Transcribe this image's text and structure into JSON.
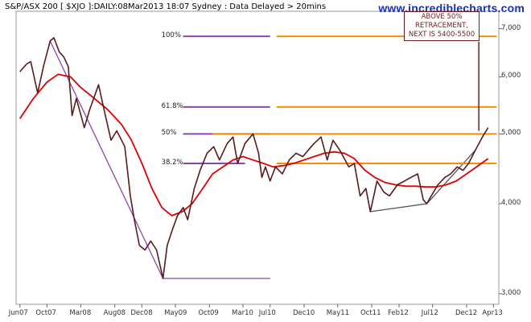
{
  "header": {
    "title": "S&P/ASX 200 [ $XJO ]:DAILY:08Mar2013 18:07 Sydney : Data Delayed > 20mins",
    "watermark": "www.incrediblecharts.com"
  },
  "chart_data": {
    "type": "line",
    "title": "S&P/ASX 200 [ $XJO ]:DAILY:08Mar2013 18:07 Sydney : Data Delayed > 20mins",
    "y_scale": "log",
    "ylim": [
      2900,
      7400
    ],
    "x_tick_labels": [
      "Jun07",
      "Oct07",
      "Mar08",
      "Aug08",
      "Dec08",
      "May09",
      "Oct09",
      "Mar10",
      "Jul10",
      "Dec10",
      "May11",
      "Oct11",
      "Feb12",
      "Jul12",
      "Dec12",
      "Apr13"
    ],
    "y_ticks": [
      3000,
      4000,
      5000,
      6000,
      7000
    ],
    "y_tick_labels": [
      "3,000",
      "4,000",
      "5,000",
      "6,000",
      "7,000"
    ],
    "series": [
      {
        "role": "price",
        "color": "#5a1a1a",
        "points": [
          [
            "2007-06-01",
            6100
          ],
          [
            "2007-07-01",
            6250
          ],
          [
            "2007-07-20",
            6300
          ],
          [
            "2007-08-20",
            5700
          ],
          [
            "2007-09-15",
            6200
          ],
          [
            "2007-10-15",
            6730
          ],
          [
            "2007-11-01",
            6800
          ],
          [
            "2007-11-25",
            6500
          ],
          [
            "2007-12-15",
            6400
          ],
          [
            "2008-01-05",
            6200
          ],
          [
            "2008-01-22",
            5300
          ],
          [
            "2008-02-10",
            5600
          ],
          [
            "2008-03-17",
            5100
          ],
          [
            "2008-04-10",
            5400
          ],
          [
            "2008-05-20",
            5850
          ],
          [
            "2008-06-20",
            5300
          ],
          [
            "2008-07-15",
            4900
          ],
          [
            "2008-08-10",
            5050
          ],
          [
            "2008-09-15",
            4800
          ],
          [
            "2008-10-10",
            4100
          ],
          [
            "2008-10-28",
            3800
          ],
          [
            "2008-11-20",
            3500
          ],
          [
            "2008-12-15",
            3450
          ],
          [
            "2009-01-10",
            3550
          ],
          [
            "2009-02-05",
            3450
          ],
          [
            "2009-03-06",
            3150
          ],
          [
            "2009-03-25",
            3500
          ],
          [
            "2009-04-20",
            3700
          ],
          [
            "2009-05-10",
            3850
          ],
          [
            "2009-06-05",
            3950
          ],
          [
            "2009-06-25",
            3800
          ],
          [
            "2009-07-25",
            4200
          ],
          [
            "2009-08-20",
            4450
          ],
          [
            "2009-09-20",
            4700
          ],
          [
            "2009-10-20",
            4800
          ],
          [
            "2009-11-15",
            4600
          ],
          [
            "2009-12-20",
            4850
          ],
          [
            "2010-01-15",
            4950
          ],
          [
            "2010-02-05",
            4550
          ],
          [
            "2010-03-10",
            4850
          ],
          [
            "2010-04-15",
            5000
          ],
          [
            "2010-05-10",
            4700
          ],
          [
            "2010-05-25",
            4350
          ],
          [
            "2010-06-10",
            4500
          ],
          [
            "2010-07-01",
            4300
          ],
          [
            "2010-07-25",
            4500
          ],
          [
            "2010-08-25",
            4400
          ],
          [
            "2010-09-25",
            4600
          ],
          [
            "2010-10-25",
            4700
          ],
          [
            "2010-11-25",
            4650
          ],
          [
            "2010-12-20",
            4750
          ],
          [
            "2011-01-15",
            4850
          ],
          [
            "2011-02-15",
            4950
          ],
          [
            "2011-03-15",
            4600
          ],
          [
            "2011-04-10",
            4900
          ],
          [
            "2011-05-10",
            4750
          ],
          [
            "2011-06-20",
            4500
          ],
          [
            "2011-07-15",
            4550
          ],
          [
            "2011-08-10",
            4100
          ],
          [
            "2011-09-05",
            4200
          ],
          [
            "2011-09-25",
            3900
          ],
          [
            "2011-10-25",
            4300
          ],
          [
            "2011-11-25",
            4150
          ],
          [
            "2011-12-20",
            4100
          ],
          [
            "2012-01-25",
            4250
          ],
          [
            "2012-02-25",
            4300
          ],
          [
            "2012-03-25",
            4350
          ],
          [
            "2012-04-25",
            4400
          ],
          [
            "2012-05-20",
            4050
          ],
          [
            "2012-06-05",
            4000
          ],
          [
            "2012-06-25",
            4100
          ],
          [
            "2012-07-25",
            4250
          ],
          [
            "2012-08-25",
            4350
          ],
          [
            "2012-09-20",
            4400
          ],
          [
            "2012-10-20",
            4500
          ],
          [
            "2012-11-15",
            4450
          ],
          [
            "2012-12-10",
            4550
          ],
          [
            "2013-01-10",
            4750
          ],
          [
            "2013-02-10",
            4950
          ],
          [
            "2013-03-08",
            5100
          ]
        ]
      },
      {
        "role": "moving-average",
        "color": "#e00000",
        "points": [
          [
            "2007-06-01",
            5250
          ],
          [
            "2007-08-01",
            5600
          ],
          [
            "2007-10-01",
            5900
          ],
          [
            "2007-11-20",
            6050
          ],
          [
            "2008-01-15",
            6000
          ],
          [
            "2008-03-01",
            5800
          ],
          [
            "2008-05-01",
            5600
          ],
          [
            "2008-07-01",
            5400
          ],
          [
            "2008-09-01",
            5150
          ],
          [
            "2008-10-15",
            4900
          ],
          [
            "2008-12-01",
            4550
          ],
          [
            "2009-01-15",
            4200
          ],
          [
            "2009-03-01",
            3950
          ],
          [
            "2009-04-15",
            3850
          ],
          [
            "2009-06-01",
            3900
          ],
          [
            "2009-07-15",
            4000
          ],
          [
            "2009-09-01",
            4200
          ],
          [
            "2009-10-15",
            4400
          ],
          [
            "2009-12-01",
            4500
          ],
          [
            "2010-01-15",
            4600
          ],
          [
            "2010-03-01",
            4650
          ],
          [
            "2010-04-15",
            4600
          ],
          [
            "2010-06-01",
            4550
          ],
          [
            "2010-07-15",
            4500
          ],
          [
            "2010-09-01",
            4520
          ],
          [
            "2010-10-15",
            4550
          ],
          [
            "2010-12-01",
            4600
          ],
          [
            "2011-01-15",
            4650
          ],
          [
            "2011-03-01",
            4700
          ],
          [
            "2011-04-15",
            4720
          ],
          [
            "2011-06-01",
            4700
          ],
          [
            "2011-07-15",
            4620
          ],
          [
            "2011-09-01",
            4450
          ],
          [
            "2011-10-15",
            4350
          ],
          [
            "2011-12-01",
            4280
          ],
          [
            "2012-01-15",
            4250
          ],
          [
            "2012-03-01",
            4230
          ],
          [
            "2012-04-15",
            4230
          ],
          [
            "2012-06-01",
            4220
          ],
          [
            "2012-07-15",
            4220
          ],
          [
            "2012-09-01",
            4250
          ],
          [
            "2012-10-15",
            4300
          ],
          [
            "2012-12-01",
            4400
          ],
          [
            "2013-01-15",
            4500
          ],
          [
            "2013-03-08",
            4620
          ]
        ]
      }
    ],
    "trendlines": [
      {
        "color": "#8e44ad",
        "from": [
          "2007-10-15",
          6730
        ],
        "to": [
          "2009-03-06",
          3150
        ]
      },
      {
        "color": "#8e44ad",
        "from": [
          "2009-03-06",
          3150
        ],
        "to": [
          "2010-07-01",
          3150
        ]
      },
      {
        "color": "#555555",
        "from": [
          "2011-09-25",
          3900
        ],
        "to": [
          "2012-06-05",
          4000
        ]
      },
      {
        "color": "#555555",
        "from": [
          "2012-06-05",
          4000
        ],
        "to": [
          "2013-01-10",
          4750
        ]
      }
    ],
    "fib_levels": [
      {
        "label": "100%",
        "value": 6830
      },
      {
        "label": "61.8%",
        "value": 5450
      },
      {
        "label": "50%",
        "value": 5000
      },
      {
        "label": "38.2%",
        "value": 4550
      }
    ],
    "fib_purple_span": [
      "2009-03-06",
      "2010-07-01"
    ],
    "fib_orange_span": [
      "2010-07-01",
      "2013-04-15"
    ],
    "fib_50_orange_start": "2009-10-15",
    "fib_382_purple_end": "2010-03-10",
    "fib_purple_color": "#8e44ad",
    "fib_orange_color": "#ff8c00",
    "annotation": {
      "lines": [
        "ABOVE 50%",
        "RETRACEMENT,",
        "NEXT IS 5400-5500"
      ],
      "pointer_date": "2013-01-25",
      "pointer_to_value": 5050,
      "color": "#6b1f1f"
    }
  }
}
